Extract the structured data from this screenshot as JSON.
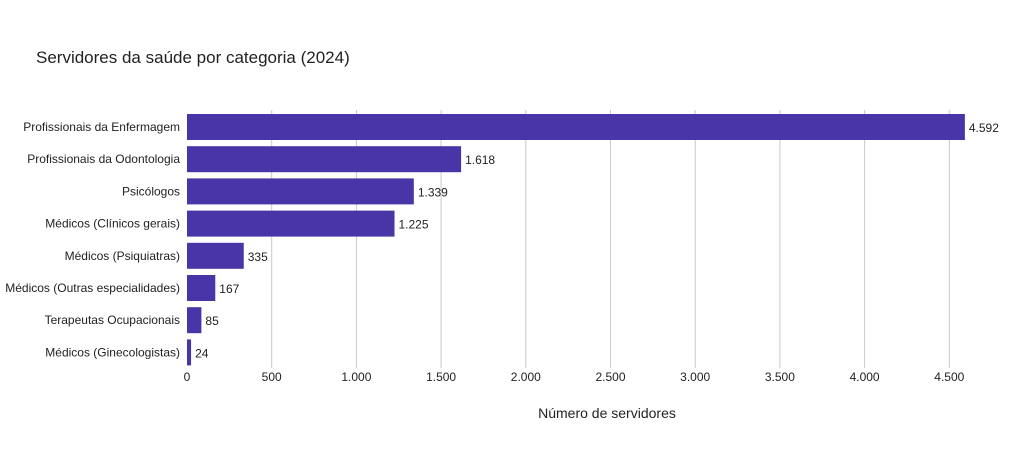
{
  "chart_data": {
    "type": "bar",
    "orientation": "horizontal",
    "title": "Servidores da saúde por categoria (2024)",
    "xlabel": "Número de servidores",
    "ylabel": "",
    "categories": [
      "Profissionais da Enfermagem",
      "Profissionais da Odontologia",
      "Psicólogos",
      "Médicos (Clínicos gerais)",
      "Médicos (Psiquiatras)",
      "Médicos (Outras especialidades)",
      "Terapeutas Ocupacionais",
      "Médicos (Ginecologistas)"
    ],
    "values": [
      4592,
      1618,
      1339,
      1225,
      335,
      167,
      85,
      24
    ],
    "value_labels": [
      "4.592",
      "1.618",
      "1.339",
      "1.225",
      "335",
      "167",
      "85",
      "24"
    ],
    "xlim": [
      0,
      4600
    ],
    "xticks": [
      0,
      500,
      1000,
      1500,
      2000,
      2500,
      3000,
      3500,
      4000,
      4500
    ],
    "xtick_labels": [
      "0",
      "500",
      "1.000",
      "1.500",
      "2.000",
      "2.500",
      "3.000",
      "3.500",
      "4.000",
      "4.500"
    ],
    "grid": "vertical",
    "bar_color": "#4a35a8",
    "grid_color": "#c8c8c8"
  }
}
